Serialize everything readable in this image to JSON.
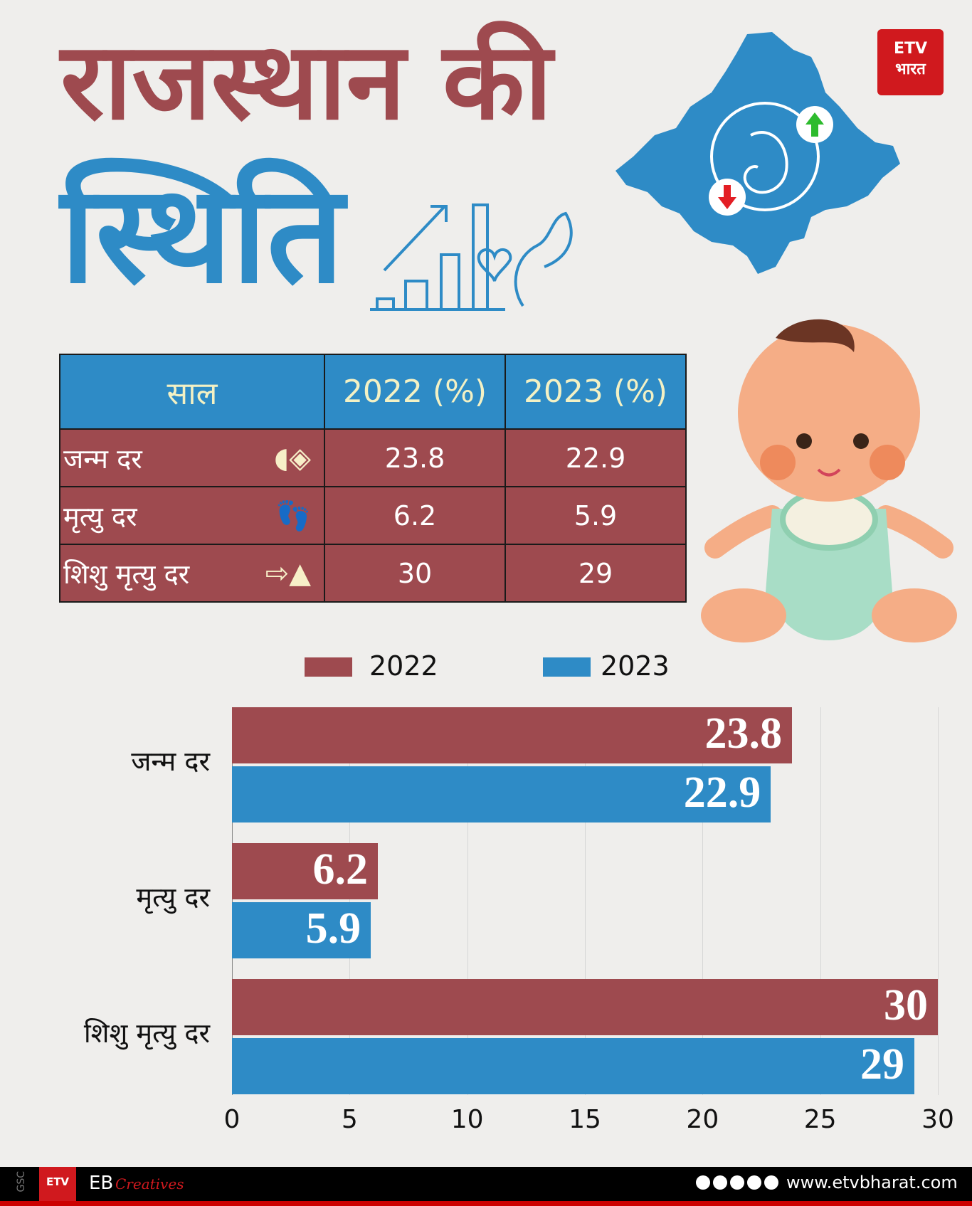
{
  "title": {
    "line1": "राजस्थान की",
    "line2": "स्थिति"
  },
  "logo": {
    "text": "ETV भारत",
    "color": "#d0191e"
  },
  "table": {
    "headers": [
      "साल",
      "2022 (%)",
      "2023 (%)"
    ],
    "rows": [
      {
        "label": "जन्म दर",
        "icon": "pregnancy-icon",
        "v2022": "23.8",
        "v2023": "22.9"
      },
      {
        "label": "मृत्यु दर",
        "icon": "feet-tag-icon",
        "v2022": "6.2",
        "v2023": "5.9"
      },
      {
        "label": "शिशु मृत्यु दर",
        "icon": "stroller-grave-icon",
        "v2022": "30",
        "v2023": "29"
      }
    ]
  },
  "chart_data": {
    "type": "bar",
    "orientation": "horizontal",
    "categories": [
      "जन्म दर",
      "मृत्यु दर",
      "शिशु मृत्यु दर"
    ],
    "series": [
      {
        "name": "2022",
        "color": "#9e4a4f",
        "values": [
          23.8,
          6.2,
          30
        ]
      },
      {
        "name": "2023",
        "color": "#2e8bc6",
        "values": [
          22.9,
          5.9,
          29
        ]
      }
    ],
    "value_labels": [
      [
        "23.8",
        "6.2",
        "30"
      ],
      [
        "22.9",
        "5.9",
        "29"
      ]
    ],
    "xlim": [
      0,
      30
    ],
    "xticks": [
      "0",
      "5",
      "10",
      "15",
      "20",
      "25",
      "30"
    ],
    "grid": true,
    "legend": "top"
  },
  "footer": {
    "side": "GSC",
    "brand": "EB",
    "brand_script": "Creatives",
    "url": "www.etvbharat.com",
    "social": [
      "facebook-icon",
      "x-icon",
      "instagram-icon",
      "youtube-icon",
      "whatsapp-icon"
    ]
  }
}
